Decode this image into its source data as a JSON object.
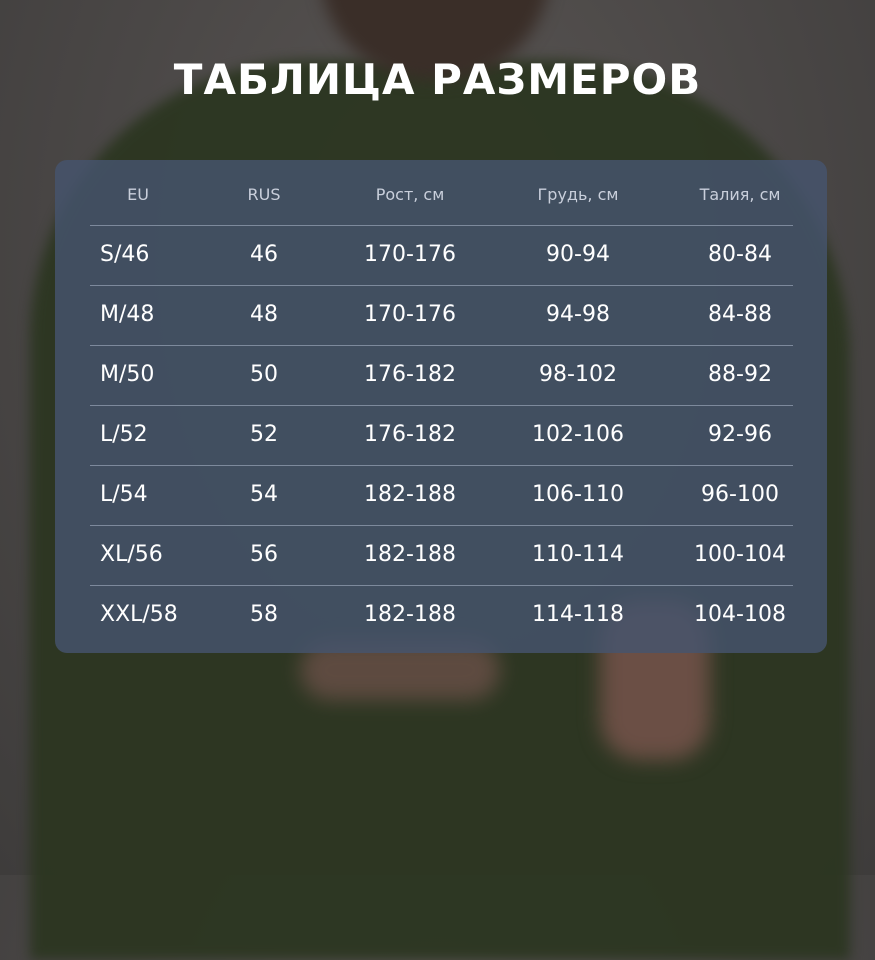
{
  "title": "ТАБЛИЦА РАЗМЕРОВ",
  "colors": {
    "background": "#4a4746",
    "sweater": "#2c3621",
    "panel": "#46546e",
    "text": "#ffffff"
  },
  "table": {
    "headers": [
      "EU",
      "RUS",
      "Рост, см",
      "Грудь, см",
      "Талия, см"
    ],
    "rows": [
      [
        "S/46",
        "46",
        "170-176",
        "90-94",
        "80-84"
      ],
      [
        "M/48",
        "48",
        "170-176",
        "94-98",
        "84-88"
      ],
      [
        "M/50",
        "50",
        "176-182",
        "98-102",
        "88-92"
      ],
      [
        "L/52",
        "52",
        "176-182",
        "102-106",
        "92-96"
      ],
      [
        "L/54",
        "54",
        "182-188",
        "106-110",
        "96-100"
      ],
      [
        "XL/56",
        "56",
        "182-188",
        "110-114",
        "100-104"
      ],
      [
        "XXL/58",
        "58",
        "182-188",
        "114-118",
        "104-108"
      ]
    ]
  }
}
